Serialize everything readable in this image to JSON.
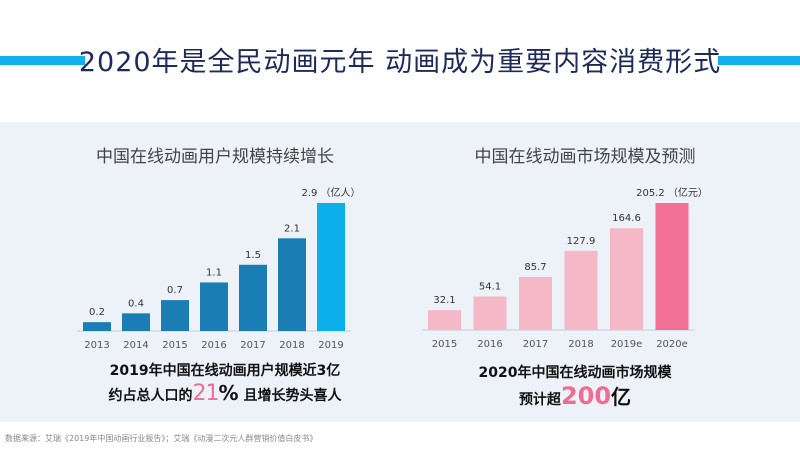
{
  "header": {
    "title": "2020年是全民动画元年 动画成为重要内容消费形式"
  },
  "chart_data": [
    {
      "type": "bar",
      "title": "中国在线动画用户规模持续增长",
      "unit": "（亿人）",
      "categories": [
        "2013",
        "2014",
        "2015",
        "2016",
        "2017",
        "2018",
        "2019"
      ],
      "values": [
        0.2,
        0.4,
        0.7,
        1.1,
        1.5,
        2.1,
        2.9
      ],
      "labels": [
        "0.2",
        "0.4",
        "0.7",
        "1.1",
        "1.5",
        "2.1",
        "2.9"
      ],
      "colors": {
        "normal": "#1a7db4",
        "highlight": "#0bb0ea"
      },
      "ylim": [
        0,
        2.9
      ]
    },
    {
      "type": "bar",
      "title": "中国在线动画市场规模及预测",
      "unit": "（亿元）",
      "categories": [
        "2015",
        "2016",
        "2017",
        "2018",
        "2019e",
        "2020e"
      ],
      "values": [
        32.1,
        54.1,
        85.7,
        127.9,
        164.6,
        205.2
      ],
      "labels": [
        "32.1",
        "54.1",
        "85.7",
        "127.9",
        "164.6",
        "205.2"
      ],
      "colors": {
        "normal": "#f5b8c7",
        "highlight": "#f27095"
      },
      "ylim": [
        0,
        205.2
      ]
    }
  ],
  "captions": {
    "left_line1": "2019年中国在线动画用户规模近3亿",
    "left_line2a": "约占总人口的",
    "left_big": "21",
    "left_pct": "%",
    "left_line2b": " 且增长势头喜人",
    "right_line1": "2020年中国在线动画市场规模",
    "right_line2a": "预计超",
    "right_big": "200",
    "right_yi": "亿"
  },
  "source": "数据来源：艾瑞《2019年中国动画行业报告》；艾瑞《动漫二次元人群营销价值白皮书》"
}
